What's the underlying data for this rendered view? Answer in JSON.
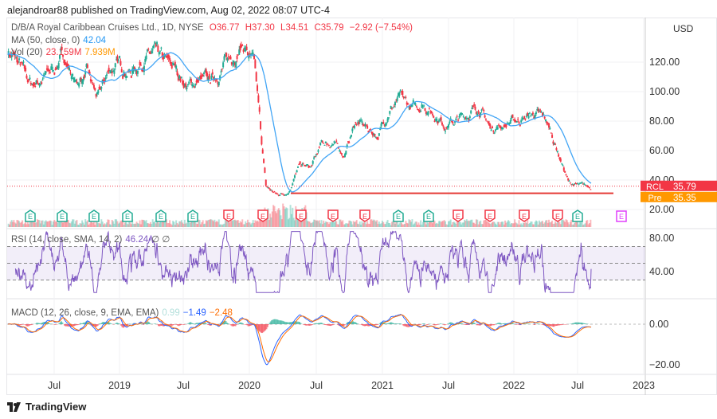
{
  "header": {
    "published": "alejandroar88 published on TradingView.com, Aug 02, 2022 08:07 UTC-4"
  },
  "legend": {
    "symbol": "D/B/A Royal Caribbean Cruises Ltd., 1D, NYSE",
    "o": "O36.77",
    "h": "H37.30",
    "l": "L34.51",
    "c": "C35.79",
    "chg": "−2.92 (−7.54%)",
    "ma_label": "MA (50, close, 0)",
    "ma_val": "42.04",
    "vol_label": "Vol (20)",
    "vol_val1": "23.159M",
    "vol_val2": "7.939M",
    "rsi_label": "RSI (14, close, SMA, 14, 2)",
    "rsi_val": "46.24",
    "rsi_na": "∅ ∅",
    "macd_label": "MACD (12, 26, close, 9, EMA, EMA)",
    "macd_hist": "0.99",
    "macd_line": "−1.49",
    "macd_signal": "−2.48"
  },
  "price_axis": {
    "currency": "USD",
    "ticks": [
      "120.00",
      "100.00",
      "80.00",
      "60.00",
      "40.00",
      "20.00"
    ],
    "rsi_ticks": [
      "80.00",
      "40.00"
    ],
    "macd_ticks": [
      "0.00",
      "−20.00"
    ]
  },
  "badges": {
    "symbol": "RCL",
    "last": "35.79",
    "pre_label": "Pre",
    "pre": "35.35"
  },
  "time_axis": [
    "Jul",
    "2019",
    "Jul",
    "2020",
    "Jul",
    "2021",
    "Jul",
    "2022",
    "Jul",
    "2023"
  ],
  "events": {
    "letter": "E",
    "colors": [
      "#22ab94",
      "#22ab94",
      "#22ab94",
      "#22ab94",
      "#22ab94",
      "#22ab94",
      "#f23645",
      "#f23645",
      "#f23645",
      "#f23645",
      "#f23645",
      "#22ab94",
      "#22ab94",
      "#f23645",
      "#f23645",
      "#f23645",
      "#f23645",
      "#22ab94",
      "#e040fb"
    ]
  },
  "colors": {
    "up": "#22ab94",
    "down": "#f23645",
    "ma": "#42a5f5",
    "rsi": "#7e57c2",
    "pre": "#ff9800",
    "support": "#e53935"
  },
  "footer": {
    "brand": "TradingView"
  },
  "chart_data": {
    "type": "candlestick",
    "title": "D/B/A Royal Caribbean Cruises Ltd., 1D, NYSE",
    "x_start": "2018-04",
    "interval": "month",
    "monthly_close": [
      128,
      118,
      105,
      108,
      115,
      125,
      105,
      112,
      95,
      115,
      118,
      113,
      122,
      125,
      120,
      115,
      103,
      108,
      107,
      115,
      125,
      132,
      115,
      35,
      30,
      32,
      50,
      48,
      65,
      65,
      57,
      80,
      75,
      70,
      88,
      95,
      88,
      92,
      85,
      78,
      80,
      85,
      90,
      75,
      77,
      80,
      82,
      85,
      80,
      60,
      38,
      36,
      35.79
    ],
    "support_level": 31,
    "ylim": [
      15,
      140
    ],
    "rsi_range": [
      20,
      85
    ],
    "rsi_bands": [
      70,
      50,
      30
    ],
    "macd_range": [
      -24,
      8
    ]
  }
}
